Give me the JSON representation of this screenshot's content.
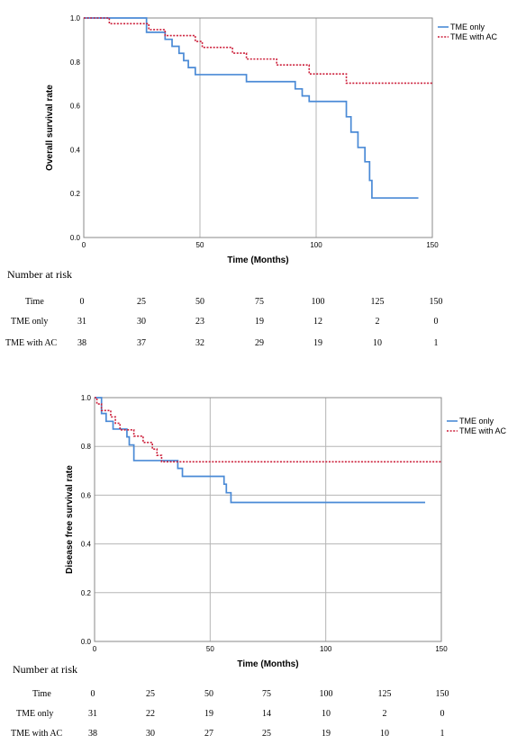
{
  "chart_data": [
    {
      "type": "line",
      "step": true,
      "xlabel": "Time (Months)",
      "ylabel": "Overall survival rate",
      "xlim": [
        0,
        150
      ],
      "ylim": [
        0,
        1.0
      ],
      "xticks": [
        "0",
        "50",
        "100",
        "150"
      ],
      "yticks": [
        "0.0",
        "0.2",
        "0.4",
        "0.6",
        "0.8",
        "1.0"
      ],
      "grid": "vertical",
      "legend_position": "top-right",
      "series": [
        {
          "name": "TME only",
          "color": "#4a8ad6",
          "dash": "solid",
          "points": [
            [
              0,
              1.0
            ],
            [
              27,
              1.0
            ],
            [
              27,
              0.935
            ],
            [
              35,
              0.935
            ],
            [
              35,
              0.903
            ],
            [
              38,
              0.903
            ],
            [
              38,
              0.871
            ],
            [
              41,
              0.871
            ],
            [
              41,
              0.839
            ],
            [
              43,
              0.839
            ],
            [
              43,
              0.806
            ],
            [
              45,
              0.806
            ],
            [
              45,
              0.774
            ],
            [
              48,
              0.774
            ],
            [
              48,
              0.742
            ],
            [
              70,
              0.742
            ],
            [
              70,
              0.71
            ],
            [
              91,
              0.71
            ],
            [
              91,
              0.677
            ],
            [
              94,
              0.677
            ],
            [
              94,
              0.645
            ],
            [
              97,
              0.645
            ],
            [
              97,
              0.62
            ],
            [
              113,
              0.62
            ],
            [
              113,
              0.55
            ],
            [
              115,
              0.55
            ],
            [
              115,
              0.48
            ],
            [
              118,
              0.48
            ],
            [
              118,
              0.41
            ],
            [
              121,
              0.41
            ],
            [
              121,
              0.345
            ],
            [
              123,
              0.345
            ],
            [
              123,
              0.26
            ],
            [
              124,
              0.26
            ],
            [
              124,
              0.18
            ],
            [
              144,
              0.18
            ]
          ]
        },
        {
          "name": "TME with AC",
          "color": "#cc1f3a",
          "dash": "dotted",
          "points": [
            [
              0,
              1.0
            ],
            [
              11,
              1.0
            ],
            [
              11,
              0.974
            ],
            [
              28,
              0.974
            ],
            [
              28,
              0.947
            ],
            [
              35,
              0.947
            ],
            [
              35,
              0.92
            ],
            [
              48,
              0.92
            ],
            [
              48,
              0.893
            ],
            [
              51,
              0.893
            ],
            [
              51,
              0.866
            ],
            [
              64,
              0.866
            ],
            [
              64,
              0.84
            ],
            [
              70,
              0.84
            ],
            [
              70,
              0.813
            ],
            [
              83,
              0.813
            ],
            [
              83,
              0.786
            ],
            [
              97,
              0.786
            ],
            [
              97,
              0.745
            ],
            [
              113,
              0.745
            ],
            [
              113,
              0.703
            ],
            [
              150,
              0.703
            ]
          ]
        }
      ],
      "risk_table": {
        "title": "Number at risk",
        "header_label": "Time",
        "times": [
          "0",
          "25",
          "50",
          "75",
          "100",
          "125",
          "150"
        ],
        "rows": [
          {
            "label": "TME only",
            "values": [
              "31",
              "30",
              "23",
              "19",
              "12",
              "2",
              "0"
            ]
          },
          {
            "label": "TME with AC",
            "values": [
              "38",
              "37",
              "32",
              "29",
              "19",
              "10",
              "1"
            ]
          }
        ]
      }
    },
    {
      "type": "line",
      "step": true,
      "xlabel": "Time (Months)",
      "ylabel": "Disease free survival rate",
      "xlim": [
        0,
        150
      ],
      "ylim": [
        0,
        1.0
      ],
      "xticks": [
        "0",
        "50",
        "100",
        "150"
      ],
      "yticks": [
        "0.0",
        "0.2",
        "0.4",
        "0.6",
        "0.8",
        "1.0"
      ],
      "grid": "both",
      "legend_position": "top-right",
      "series": [
        {
          "name": "TME only",
          "color": "#4a8ad6",
          "dash": "solid",
          "points": [
            [
              0,
              1.0
            ],
            [
              3,
              1.0
            ],
            [
              3,
              0.935
            ],
            [
              5,
              0.935
            ],
            [
              5,
              0.903
            ],
            [
              8,
              0.903
            ],
            [
              8,
              0.871
            ],
            [
              14,
              0.871
            ],
            [
              14,
              0.839
            ],
            [
              15,
              0.839
            ],
            [
              15,
              0.806
            ],
            [
              17,
              0.806
            ],
            [
              17,
              0.742
            ],
            [
              36,
              0.742
            ],
            [
              36,
              0.71
            ],
            [
              38,
              0.71
            ],
            [
              38,
              0.677
            ],
            [
              56,
              0.677
            ],
            [
              56,
              0.645
            ],
            [
              57,
              0.645
            ],
            [
              57,
              0.61
            ],
            [
              59,
              0.61
            ],
            [
              59,
              0.57
            ],
            [
              143,
              0.57
            ]
          ]
        },
        {
          "name": "TME with AC",
          "color": "#cc1f3a",
          "dash": "dotted",
          "points": [
            [
              0,
              1.0
            ],
            [
              1,
              1.0
            ],
            [
              1,
              0.974
            ],
            [
              3,
              0.974
            ],
            [
              3,
              0.947
            ],
            [
              7,
              0.947
            ],
            [
              7,
              0.921
            ],
            [
              9,
              0.921
            ],
            [
              9,
              0.895
            ],
            [
              11,
              0.895
            ],
            [
              11,
              0.868
            ],
            [
              17,
              0.868
            ],
            [
              17,
              0.842
            ],
            [
              21,
              0.842
            ],
            [
              21,
              0.816
            ],
            [
              25,
              0.816
            ],
            [
              25,
              0.789
            ],
            [
              27,
              0.789
            ],
            [
              27,
              0.763
            ],
            [
              29,
              0.763
            ],
            [
              29,
              0.737
            ],
            [
              150,
              0.737
            ]
          ]
        }
      ],
      "risk_table": {
        "title": "Number at risk",
        "header_label": "Time",
        "times": [
          "0",
          "25",
          "50",
          "75",
          "100",
          "125",
          "150"
        ],
        "rows": [
          {
            "label": "TME only",
            "values": [
              "31",
              "22",
              "19",
              "14",
              "10",
              "2",
              "0"
            ]
          },
          {
            "label": "TME with AC",
            "values": [
              "38",
              "30",
              "27",
              "25",
              "19",
              "10",
              "1"
            ]
          }
        ]
      }
    }
  ]
}
